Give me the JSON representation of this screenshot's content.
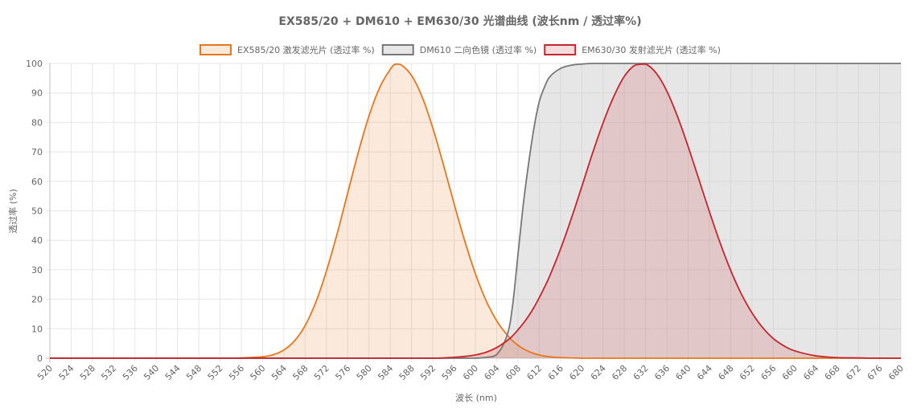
{
  "chart_data": {
    "type": "area",
    "title": "EX585/20 + DM610 + EM630/30 光谱曲线 (波长nm / 透过率%)",
    "xlabel": "波长 (nm)",
    "ylabel": "透过率 (%)",
    "xlim": [
      520,
      680
    ],
    "ylim": [
      0,
      100
    ],
    "x_ticks": [
      520,
      524,
      528,
      532,
      536,
      540,
      544,
      548,
      552,
      556,
      560,
      564,
      568,
      572,
      576,
      580,
      584,
      588,
      592,
      596,
      600,
      604,
      608,
      612,
      616,
      620,
      624,
      628,
      632,
      636,
      640,
      644,
      648,
      652,
      656,
      660,
      664,
      668,
      672,
      676,
      680
    ],
    "y_ticks": [
      0,
      10,
      20,
      30,
      40,
      50,
      60,
      70,
      80,
      90,
      100
    ],
    "grid": true,
    "legend_position": "top",
    "x": [
      520,
      524,
      528,
      532,
      536,
      540,
      544,
      548,
      552,
      556,
      560,
      562,
      564,
      566,
      568,
      570,
      572,
      574,
      576,
      578,
      580,
      582,
      584,
      585,
      586,
      588,
      590,
      592,
      594,
      596,
      598,
      600,
      602,
      604,
      606,
      607,
      608,
      609,
      610,
      611,
      612,
      613,
      614,
      616,
      618,
      620,
      622,
      624,
      626,
      628,
      630,
      632,
      634,
      636,
      638,
      640,
      642,
      644,
      646,
      648,
      650,
      652,
      654,
      656,
      658,
      660,
      664,
      668,
      672,
      676,
      680
    ],
    "series": [
      {
        "name": "EX585/20 激发滤光片 (透过率 %)",
        "color": "#e8761c",
        "fill": "rgba(232,118,28,0.16)",
        "values": [
          0,
          0,
          0,
          0,
          0,
          0,
          0,
          0,
          0,
          0.1,
          0.5,
          1.2,
          2.8,
          5.9,
          11.1,
          19.0,
          29.6,
          42.2,
          56.1,
          69.9,
          82.2,
          91.8,
          98.0,
          99.8,
          99.6,
          95.9,
          88.6,
          78.1,
          65.6,
          52.4,
          39.8,
          28.7,
          19.6,
          12.7,
          7.8,
          5.9,
          4.4,
          3.2,
          2.3,
          1.6,
          1.1,
          0.7,
          0.5,
          0.2,
          0.1,
          0,
          0,
          0,
          0,
          0,
          0,
          0,
          0,
          0,
          0,
          0,
          0,
          0,
          0,
          0,
          0,
          0,
          0,
          0,
          0,
          0,
          0,
          0,
          0,
          0,
          0
        ]
      },
      {
        "name": "DM610 二向色镜 (透过率 %)",
        "color": "#777777",
        "fill": "rgba(200,200,200,0.45)",
        "values": [
          0,
          0,
          0,
          0,
          0,
          0,
          0,
          0,
          0,
          0,
          0,
          0,
          0,
          0,
          0,
          0,
          0,
          0,
          0,
          0,
          0,
          0,
          0,
          0,
          0,
          0,
          0,
          0,
          0,
          0,
          0,
          0,
          0.3,
          1.2,
          8.0,
          18.0,
          35.0,
          52.0,
          66.0,
          78.0,
          87.0,
          92.0,
          95.5,
          98.3,
          99.4,
          99.8,
          100,
          100,
          100,
          100,
          100,
          100,
          100,
          100,
          100,
          100,
          100,
          100,
          100,
          100,
          100,
          100,
          100,
          100,
          100,
          100,
          100,
          100,
          100,
          100,
          100
        ]
      },
      {
        "name": "EM630/30 发射滤光片 (透过率 %)",
        "color": "#c4262e",
        "fill": "rgba(196,38,46,0.16)",
        "values": [
          0,
          0,
          0,
          0,
          0,
          0,
          0,
          0,
          0,
          0,
          0,
          0,
          0,
          0,
          0,
          0,
          0,
          0,
          0,
          0,
          0,
          0,
          0,
          0,
          0,
          0,
          0,
          0,
          0.1,
          0.3,
          0.6,
          1.1,
          2.0,
          3.6,
          6.0,
          7.6,
          9.6,
          11.8,
          14.3,
          17.2,
          20.5,
          24.1,
          28.0,
          37.0,
          47.2,
          58.2,
          69.4,
          79.8,
          88.7,
          95.6,
          99.4,
          99.8,
          96.7,
          90.6,
          82.0,
          71.8,
          60.8,
          49.7,
          39.2,
          29.8,
          21.8,
          15.4,
          10.4,
          6.7,
          4.2,
          2.5,
          0.8,
          0.2,
          0.1,
          0,
          0
        ]
      }
    ]
  }
}
